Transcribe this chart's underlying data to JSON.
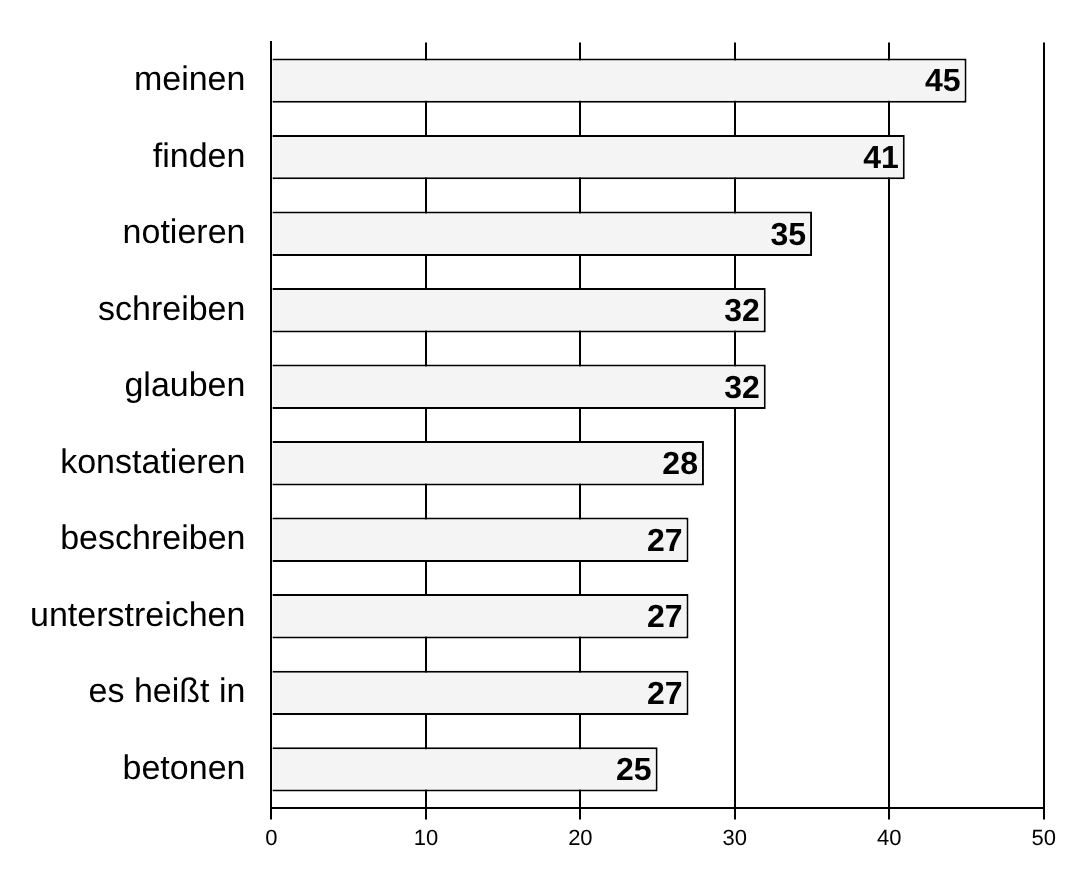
{
  "chart_data": {
    "type": "bar",
    "orientation": "horizontal",
    "categories": [
      "meinen",
      "finden",
      "notieren",
      "schreiben",
      "glauben",
      "konstatieren",
      "beschreiben",
      "unterstreichen",
      "es heißt in",
      "betonen"
    ],
    "values": [
      45,
      41,
      35,
      32,
      32,
      28,
      27,
      27,
      27,
      25
    ],
    "color": "#f4f4f4",
    "xlim": [
      0,
      50
    ],
    "xticks": [
      0,
      10,
      20,
      30,
      40,
      50
    ],
    "grid": "x",
    "data_labels": true,
    "legend": false
  }
}
